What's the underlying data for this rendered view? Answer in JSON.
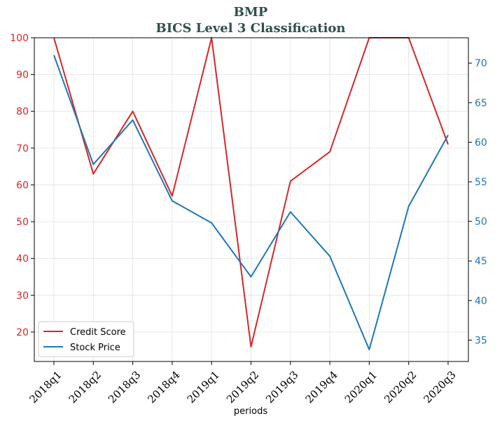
{
  "chart_data": {
    "type": "line",
    "title": "BMP",
    "subtitle": "BICS Level 3 Classification",
    "xlabel": "periods",
    "categories": [
      "2018q1",
      "2018q2",
      "2018q3",
      "2018q4",
      "2019q1",
      "2019q2",
      "2019q3",
      "2019q4",
      "2020q1",
      "2020q2",
      "2020q3"
    ],
    "left_axis": {
      "ylim": [
        12,
        100
      ],
      "ticks": [
        20,
        30,
        40,
        50,
        60,
        70,
        80,
        90,
        100
      ],
      "color": "#d62728"
    },
    "right_axis": {
      "ylim": [
        32.3,
        73.2
      ],
      "ticks": [
        35,
        40,
        45,
        50,
        55,
        60,
        65,
        70
      ],
      "color": "#1f77b4"
    },
    "series": [
      {
        "name": "Credit Score",
        "axis": "left",
        "color": "#d62728",
        "values": [
          100,
          63,
          80,
          57,
          100,
          16,
          61,
          69,
          100,
          100,
          71
        ]
      },
      {
        "name": "Stock Price",
        "axis": "right",
        "color": "#1f77b4",
        "values": [
          71.0,
          57.2,
          62.8,
          52.6,
          49.8,
          43.0,
          51.2,
          45.6,
          33.8,
          51.9,
          60.9
        ]
      }
    ],
    "grid": true,
    "legend_position": "bottom-left"
  }
}
